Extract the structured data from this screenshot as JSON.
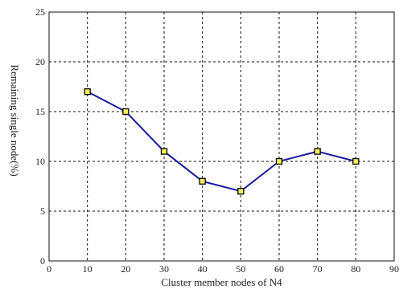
{
  "chart_data": {
    "type": "line",
    "title": "",
    "xlabel": "Cluster member nodes of N4",
    "ylabel": "Remaining single node(%)",
    "xlim": [
      0,
      90
    ],
    "ylim": [
      0,
      25
    ],
    "x_ticks": [
      0,
      10,
      20,
      30,
      40,
      50,
      60,
      70,
      80,
      90
    ],
    "y_ticks": [
      0,
      5,
      10,
      15,
      20,
      25
    ],
    "grid": true,
    "series": [
      {
        "x": [
          10,
          20,
          30,
          40,
          50,
          60,
          70,
          80
        ],
        "values": [
          17,
          15,
          11,
          8,
          7,
          10,
          11,
          10
        ],
        "color": "#1a1a9e",
        "marker": "square",
        "marker_color": "#f2f25a"
      }
    ]
  }
}
